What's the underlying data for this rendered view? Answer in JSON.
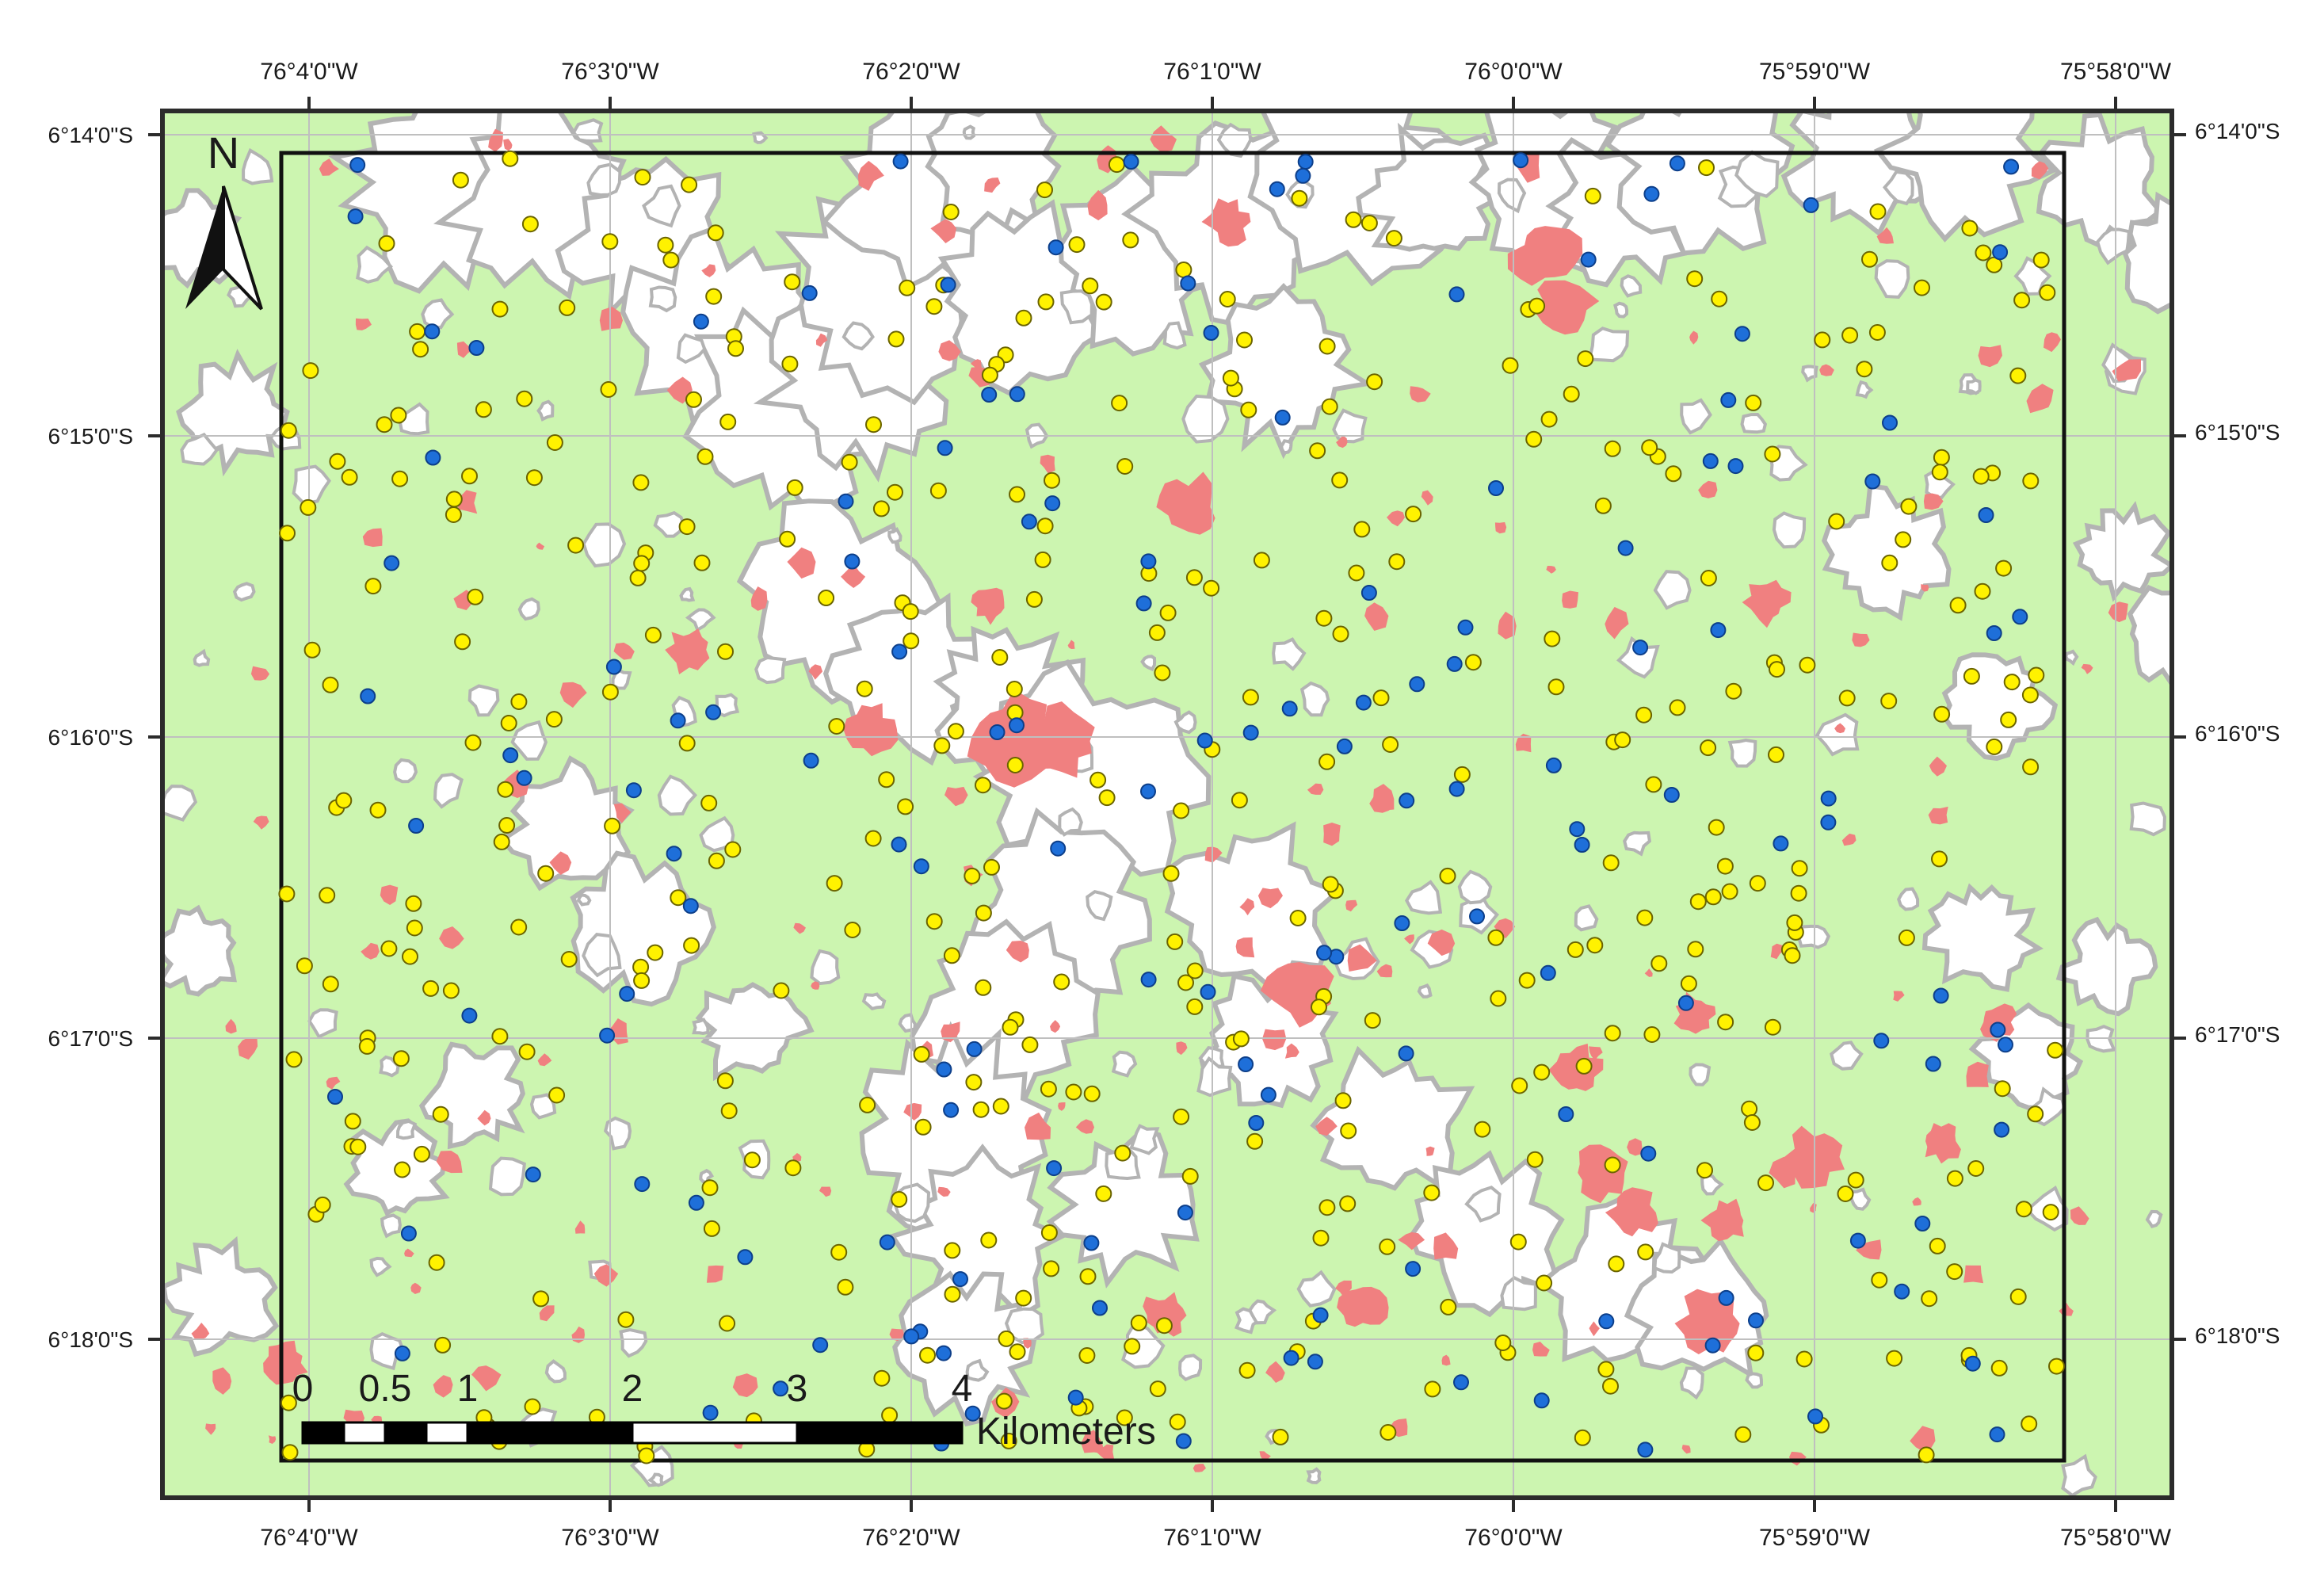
{
  "map": {
    "north_arrow_label": "N",
    "colors": {
      "vegetation": "#ccf5b0",
      "cleared": "#ffffff",
      "patch_outline": "#b3b3b3",
      "disturbance": "#f08080",
      "point_yellow": "#fff200",
      "point_blue": "#1e6fd9",
      "graticule": "#bfbfbf",
      "frame": "#2b2b2b"
    },
    "graticule": {
      "top_labels": [
        "76°4'0\"W",
        "76°3'0\"W",
        "76°2'0\"W",
        "76°1'0\"W",
        "76°0'0\"W",
        "75°59'0\"W",
        "75°58'0\"W"
      ],
      "bottom_labels": [
        "76°4'0\"W",
        "76°3'0\"W",
        "76°2'0\"W",
        "76°1'0\"W",
        "76°0'0\"W",
        "75°59'0\"W",
        "75°58'0\"W"
      ],
      "left_labels": [
        "6°14'0\"S",
        "6°15'0\"S",
        "6°16'0\"S",
        "6°17'0\"S",
        "6°18'0\"S"
      ],
      "right_labels": [
        "6°14'0\"S",
        "6°15'0\"S",
        "6°16'0\"S",
        "6°17'0\"S",
        "6°18'0\"S"
      ]
    },
    "scale_bar": {
      "tick_labels": [
        "0",
        "0.5",
        "1",
        "2",
        "3",
        "4"
      ],
      "tick_values_km": [
        0,
        0.5,
        1,
        2,
        3,
        4
      ],
      "unit_label": "Kilometers"
    }
  }
}
